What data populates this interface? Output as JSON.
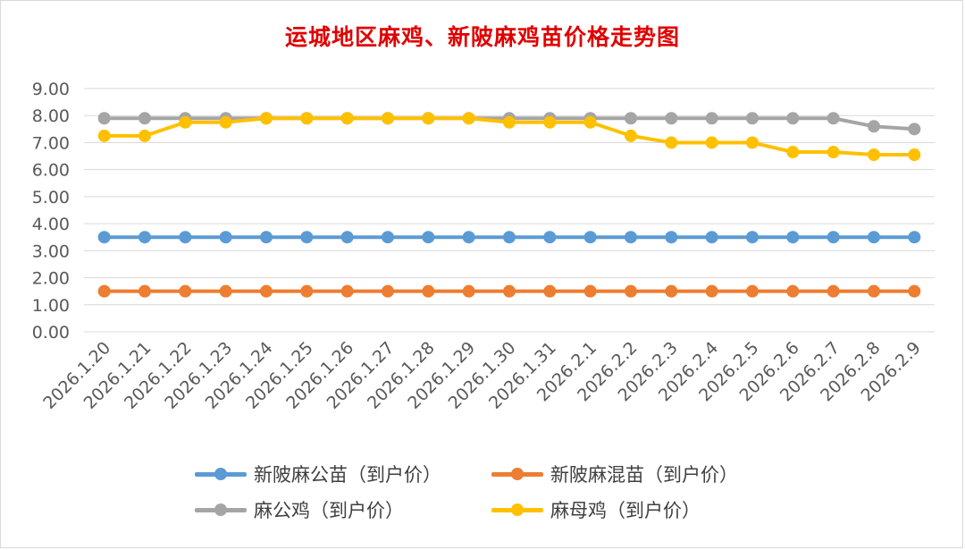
{
  "chart_data": {
    "type": "line",
    "title": "运城地区麻鸡、新陂麻鸡苗价格走势图",
    "xlabel": "",
    "ylabel": "",
    "ylim": [
      0,
      9
    ],
    "yticks": [
      "0.00",
      "1.00",
      "2.00",
      "3.00",
      "4.00",
      "5.00",
      "6.00",
      "7.00",
      "8.00",
      "9.00"
    ],
    "categories": [
      "2026.1.20",
      "2026.1.21",
      "2026.1.22",
      "2026.1.23",
      "2026.1.24",
      "2026.1.25",
      "2026.1.26",
      "2026.1.27",
      "2026.1.28",
      "2026.1.29",
      "2026.1.30",
      "2026.1.31",
      "2026.2.1",
      "2026.2.2",
      "2026.2.3",
      "2026.2.4",
      "2026.2.5",
      "2026.2.6",
      "2026.2.7",
      "2026.2.8",
      "2026.2.9"
    ],
    "series": [
      {
        "name": "新陂麻公苗（到户价）",
        "color": "#5b9bd5",
        "values": [
          3.5,
          3.5,
          3.5,
          3.5,
          3.5,
          3.5,
          3.5,
          3.5,
          3.5,
          3.5,
          3.5,
          3.5,
          3.5,
          3.5,
          3.5,
          3.5,
          3.5,
          3.5,
          3.5,
          3.5,
          3.5
        ]
      },
      {
        "name": "新陂麻混苗（到户价）",
        "color": "#ed7d31",
        "values": [
          1.5,
          1.5,
          1.5,
          1.5,
          1.5,
          1.5,
          1.5,
          1.5,
          1.5,
          1.5,
          1.5,
          1.5,
          1.5,
          1.5,
          1.5,
          1.5,
          1.5,
          1.5,
          1.5,
          1.5,
          1.5
        ]
      },
      {
        "name": "麻公鸡（到户价）",
        "color": "#a5a5a5",
        "values": [
          7.9,
          7.9,
          7.9,
          7.9,
          7.9,
          7.9,
          7.9,
          7.9,
          7.9,
          7.9,
          7.9,
          7.9,
          7.9,
          7.9,
          7.9,
          7.9,
          7.9,
          7.9,
          7.9,
          7.6,
          7.5
        ]
      },
      {
        "name": "麻母鸡（到户价）",
        "color": "#ffc000",
        "values": [
          7.25,
          7.25,
          7.75,
          7.75,
          7.9,
          7.9,
          7.9,
          7.9,
          7.9,
          7.9,
          7.75,
          7.75,
          7.75,
          7.25,
          7.0,
          7.0,
          7.0,
          6.65,
          6.65,
          6.55,
          6.55
        ]
      }
    ],
    "legend_position": "bottom",
    "grid": true
  }
}
